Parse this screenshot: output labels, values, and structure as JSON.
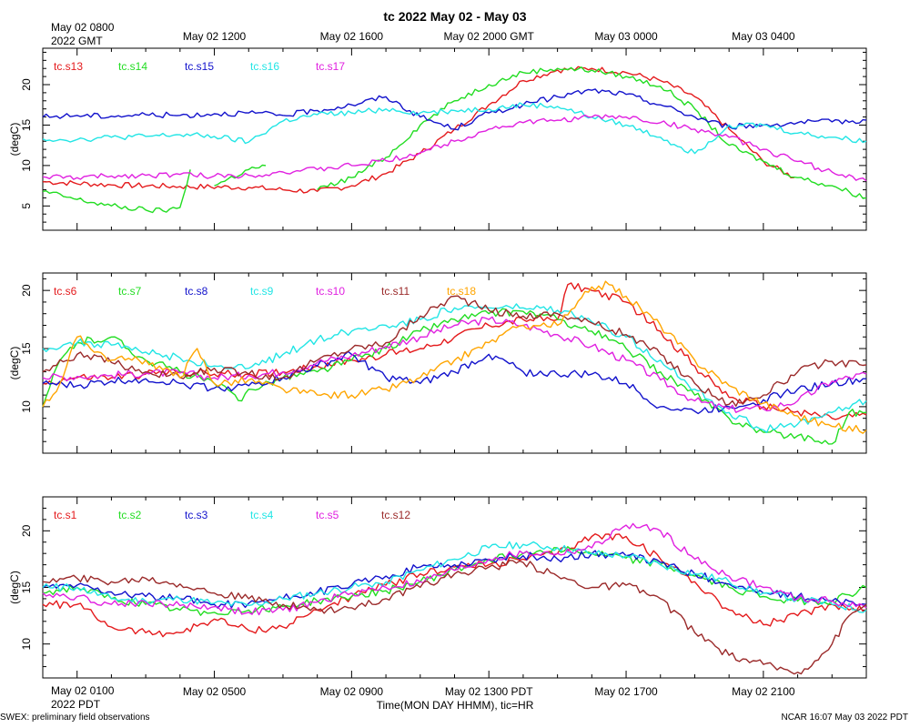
{
  "title": "tc 2022 May 02 - May 03",
  "colors": {
    "red": "#e41a1c",
    "green": "#22dd22",
    "blue": "#1212cc",
    "cyan": "#22e5e5",
    "magenta": "#e020e0",
    "brown": "#9b2a2a",
    "orange": "#ffa500"
  },
  "top_axis": {
    "first_label": [
      "May 02 0800",
      "2022 GMT"
    ],
    "labels": [
      "May 02 1200",
      "May 02 1600",
      "May 02 2000 GMT",
      "May 03 0000",
      "May 03 0400"
    ]
  },
  "bottom_axis": {
    "first_label": [
      "May 02 0100",
      "2022 PDT"
    ],
    "labels": [
      "May 02 0500",
      "May 02 0900",
      "May 02 1300 PDT",
      "May 02 1700",
      "May 02 2100"
    ],
    "xlabel": "Time(MON DAY HHMM), tic=HR"
  },
  "footer": {
    "left": "SWEX: preliminary field observations",
    "right": "NCAR 16:07 May 03 2022 PDT"
  },
  "chart_data": [
    {
      "type": "line",
      "ylabel": "(degC)",
      "ylim": [
        2,
        24.5
      ],
      "yticks": [
        5,
        10,
        15,
        20
      ],
      "xlim_hours_pdt": [
        0,
        24
      ],
      "series": [
        {
          "name": "tc.s13",
          "color": "red",
          "x": [
            0,
            2,
            4,
            6,
            7,
            8,
            9,
            10,
            11,
            12,
            13,
            14,
            15,
            16,
            17,
            18,
            19,
            20,
            21,
            21.9
          ],
          "y": [
            8,
            7.6,
            7.4,
            7.3,
            7,
            6.8,
            7.5,
            9,
            11.5,
            14.5,
            17.5,
            20.5,
            21.8,
            22,
            21.5,
            20.5,
            18.5,
            14.5,
            10.5,
            8.5
          ]
        },
        {
          "name": "tc.s14",
          "color": "green",
          "x": [
            0,
            1,
            2,
            3,
            3.5,
            4.0,
            4.3,
            4.6,
            5,
            6,
            6.5,
            7,
            8,
            9,
            10,
            11,
            12,
            13,
            14,
            15,
            16,
            17,
            18,
            19,
            20,
            21,
            22,
            23,
            24
          ],
          "y": [
            6.8,
            5.8,
            5,
            4.5,
            4.4,
            4.8,
            9.5,
            null,
            7.5,
            9.5,
            10,
            null,
            7,
            8.5,
            11,
            15,
            18,
            20,
            21.5,
            22,
            21.8,
            21,
            19.8,
            17,
            12.5,
            10.5,
            8.5,
            7.5,
            6
          ]
        },
        {
          "name": "tc.s15",
          "color": "blue",
          "x": [
            0,
            1,
            2,
            3,
            4,
            5,
            6,
            7,
            8,
            9,
            10,
            11,
            12,
            13,
            14,
            15,
            16,
            17,
            18,
            19,
            20,
            21,
            22,
            23,
            24
          ],
          "y": [
            16,
            16.2,
            16.1,
            16.3,
            16.2,
            16.4,
            16.5,
            16.2,
            16.8,
            17.5,
            18.5,
            16,
            14.5,
            16.5,
            17.5,
            18.5,
            19.3,
            18.8,
            17.5,
            16,
            14.8,
            15,
            15.3,
            15.4,
            15.6
          ]
        },
        {
          "name": "tc.s16",
          "color": "cyan",
          "x": [
            0,
            1,
            2,
            3,
            4,
            5,
            6,
            7,
            8,
            9,
            10,
            11,
            12,
            13,
            14,
            15,
            16,
            17,
            18,
            19,
            20,
            21,
            22,
            23,
            24
          ],
          "y": [
            13.3,
            13.2,
            13.5,
            13.6,
            13.8,
            13.6,
            12.9,
            15.5,
            16.3,
            16.5,
            17,
            16.5,
            16.8,
            17,
            17.5,
            17.3,
            16,
            15,
            13.5,
            11.5,
            15,
            15,
            14,
            13.5,
            13
          ]
        },
        {
          "name": "tc.s17",
          "color": "magenta",
          "x": [
            0,
            1,
            2,
            3,
            4,
            5,
            6,
            7,
            8,
            9,
            10,
            11,
            12,
            13,
            14,
            15,
            16,
            17,
            18,
            19,
            20,
            21,
            22,
            23,
            24
          ],
          "y": [
            8.6,
            8.5,
            8.7,
            8.8,
            8.9,
            8.7,
            8.8,
            9.2,
            9.5,
            10,
            10.6,
            11.6,
            13,
            14.5,
            15.3,
            15.6,
            16,
            16,
            15.3,
            14.5,
            13.5,
            12,
            10.5,
            9.2,
            8.1
          ]
        }
      ]
    },
    {
      "type": "line",
      "ylabel": "(degC)",
      "ylim": [
        6,
        21.5
      ],
      "yticks": [
        10,
        15,
        20
      ],
      "xlim_hours_pdt": [
        0,
        24
      ],
      "series": [
        {
          "name": "tc.s6",
          "color": "red",
          "x": [
            0,
            1,
            2,
            3,
            4,
            5,
            6,
            7,
            8,
            9,
            10,
            11,
            12,
            13,
            14,
            15,
            15.3,
            16,
            17,
            18,
            19,
            20,
            21,
            22,
            23,
            24
          ],
          "y": [
            12,
            12.5,
            12.5,
            12.8,
            13,
            12.8,
            12.8,
            13,
            13.5,
            14,
            14.5,
            15,
            16,
            17,
            17.5,
            17.5,
            20.5,
            20,
            19,
            16.5,
            13.5,
            10.8,
            10,
            9.6,
            9,
            9.3
          ]
        },
        {
          "name": "tc.s7",
          "color": "green",
          "x": [
            0,
            0.5,
            1,
            2,
            3,
            4,
            5,
            5.8,
            6,
            7,
            8,
            9,
            10,
            11,
            12,
            13,
            14,
            15,
            16,
            17,
            18,
            19,
            20,
            21,
            22,
            23,
            23.5,
            24
          ],
          "y": [
            10,
            14,
            15.5,
            16,
            14,
            13,
            12,
            10.5,
            11.5,
            12.5,
            13,
            14,
            15,
            16.5,
            17.5,
            18,
            18.2,
            17.5,
            16.5,
            15,
            13,
            11,
            9,
            7.8,
            7.5,
            6.8,
            9.5,
            9.5
          ]
        },
        {
          "name": "tc.s8",
          "color": "blue",
          "x": [
            0,
            1,
            2,
            3,
            4,
            5,
            6,
            7,
            8,
            9,
            10,
            11,
            12,
            13,
            14,
            15,
            16,
            17,
            18,
            19,
            20,
            21,
            22,
            23,
            24
          ],
          "y": [
            12,
            11.8,
            12.2,
            12.4,
            12,
            11.6,
            11.8,
            12.5,
            13.5,
            14.5,
            12.5,
            12,
            13,
            14.5,
            13,
            12.8,
            12.8,
            12,
            10,
            9.6,
            10,
            10.6,
            11.5,
            12,
            12.4
          ]
        },
        {
          "name": "tc.s9",
          "color": "cyan",
          "x": [
            0,
            1,
            2,
            3,
            4,
            5,
            6,
            7,
            8,
            9,
            10,
            11,
            12,
            13,
            14,
            15,
            16,
            17,
            18,
            19,
            20,
            21,
            22,
            23,
            24
          ],
          "y": [
            15,
            15.5,
            15.3,
            14.7,
            14.2,
            13.5,
            13.3,
            14.5,
            15.8,
            16.5,
            17,
            17.5,
            18.5,
            18.5,
            18.5,
            18.3,
            17.3,
            16,
            14,
            11.5,
            9.5,
            8,
            8.5,
            9.5,
            10.5
          ]
        },
        {
          "name": "tc.s10",
          "color": "magenta",
          "x": [
            0,
            1,
            2,
            3,
            4,
            5,
            6,
            7,
            8,
            9,
            10,
            11,
            12,
            13,
            14,
            15,
            16,
            17,
            18,
            19,
            20,
            21,
            22,
            23,
            24
          ],
          "y": [
            12.5,
            12.6,
            12.7,
            12.9,
            12.9,
            12.5,
            12.7,
            13,
            13.8,
            14.4,
            15.2,
            16,
            17,
            17.5,
            17,
            16.2,
            15.2,
            14,
            12.3,
            10.5,
            9.8,
            9.8,
            10.5,
            12.2,
            12.8
          ]
        },
        {
          "name": "tc.s11",
          "color": "brown",
          "x": [
            0,
            1,
            2,
            3,
            4,
            5,
            6,
            7,
            8,
            9,
            10,
            11,
            12,
            13,
            14,
            15,
            16,
            17,
            18,
            19,
            20,
            21,
            22,
            23,
            24
          ],
          "y": [
            13,
            14.5,
            13.8,
            13,
            12.5,
            13.3,
            12.8,
            12.5,
            14,
            15,
            15.5,
            17.8,
            19.5,
            18.3,
            17.8,
            18,
            17.2,
            16.2,
            14.5,
            12,
            10.2,
            11,
            13,
            13.9,
            13.6
          ]
        },
        {
          "name": "tc.s18",
          "color": "orange",
          "x": [
            0,
            0.5,
            1,
            2,
            3,
            4,
            4.5,
            5,
            6,
            7,
            8,
            9,
            10,
            11,
            12,
            13,
            14,
            15,
            15.5,
            16,
            16.5,
            17,
            18,
            19,
            20,
            21,
            22,
            23,
            24
          ],
          "y": [
            10,
            12,
            16,
            14,
            14,
            12.5,
            15,
            12,
            12.3,
            11.5,
            11,
            11,
            11.5,
            12.5,
            14,
            15.5,
            17,
            17,
            18.5,
            20.3,
            20.5,
            19.5,
            17,
            14,
            11.8,
            10.3,
            9.2,
            8.3,
            8
          ]
        }
      ]
    },
    {
      "type": "line",
      "ylabel": "(degC)",
      "ylim": [
        7,
        23
      ],
      "yticks": [
        10,
        15,
        20
      ],
      "xlim_hours_pdt": [
        0,
        24
      ],
      "series": [
        {
          "name": "tc.s1",
          "color": "red",
          "x": [
            0,
            1,
            2,
            3,
            4,
            5,
            6,
            7,
            8,
            9,
            10,
            11,
            12,
            13,
            14,
            15,
            16,
            17,
            18,
            19,
            20,
            21,
            22,
            23,
            24
          ],
          "y": [
            13.5,
            13.5,
            11.5,
            11,
            11,
            12.2,
            11.2,
            11.5,
            13,
            14.2,
            15.2,
            16.2,
            16.8,
            17,
            17.5,
            18,
            19.5,
            19.5,
            17.5,
            15.5,
            13,
            11.7,
            12.5,
            13.5,
            13
          ]
        },
        {
          "name": "tc.s2",
          "color": "green",
          "x": [
            0,
            1,
            2,
            3,
            4,
            5,
            6,
            7,
            8,
            9,
            10,
            11,
            12,
            13,
            14,
            15,
            16,
            17,
            18,
            19,
            20,
            21,
            22,
            23,
            24
          ],
          "y": [
            14.5,
            15,
            14,
            13.5,
            13,
            12.8,
            13,
            13.3,
            13.8,
            14.2,
            14.7,
            15.5,
            16.5,
            17.5,
            18,
            18.5,
            18,
            17.6,
            17,
            16,
            15,
            14.2,
            13.8,
            13.8,
            15
          ]
        },
        {
          "name": "tc.s3",
          "color": "blue",
          "x": [
            0,
            1,
            2,
            3,
            4,
            5,
            6,
            7,
            8,
            9,
            10,
            11,
            12,
            13,
            14,
            15,
            16,
            17,
            18,
            19,
            20,
            21,
            22,
            23,
            24
          ],
          "y": [
            15,
            15.2,
            14.6,
            14.2,
            14,
            13.5,
            13.6,
            14,
            14.6,
            15.2,
            16,
            16.8,
            17,
            17.4,
            17.8,
            17.5,
            18,
            17.8,
            17.2,
            16.2,
            15.3,
            14.5,
            14.2,
            13.8,
            13.5
          ]
        },
        {
          "name": "tc.s4",
          "color": "cyan",
          "x": [
            0,
            1,
            2,
            3,
            4,
            5,
            6,
            7,
            8,
            9,
            10,
            11,
            12,
            13,
            14,
            15,
            16,
            17,
            18,
            19,
            20,
            21,
            22,
            23,
            24
          ],
          "y": [
            15,
            15,
            14,
            13.8,
            14,
            13.6,
            13.4,
            14,
            14.5,
            15,
            15.5,
            16.5,
            17.5,
            18.5,
            18.8,
            18.5,
            18,
            17.8,
            17,
            16.2,
            15.5,
            14.5,
            14,
            13.5,
            13
          ]
        },
        {
          "name": "tc.s5",
          "color": "magenta",
          "x": [
            0,
            1,
            2,
            3,
            4,
            5,
            6,
            7,
            8,
            9,
            10,
            11,
            12,
            13,
            14,
            15,
            16,
            17,
            18,
            19,
            20,
            21,
            22,
            23,
            24
          ],
          "y": [
            14.5,
            14.2,
            13.5,
            13.7,
            13.4,
            13.3,
            12.8,
            13,
            13.7,
            14.5,
            15,
            15.5,
            16.5,
            17.5,
            18,
            18,
            18.5,
            20.5,
            20,
            17.5,
            16,
            15,
            14,
            13.8,
            13.2
          ]
        },
        {
          "name": "tc.s12",
          "color": "brown",
          "x": [
            0,
            1,
            2,
            3,
            4,
            5,
            6,
            7,
            8,
            9,
            10,
            11,
            12,
            13,
            14,
            15,
            16,
            17,
            18,
            19,
            20,
            21,
            22,
            22.5,
            23,
            23.5,
            24
          ],
          "y": [
            15.5,
            15.8,
            15.5,
            15.8,
            15.3,
            14.5,
            14,
            13.5,
            13,
            13.2,
            14,
            15,
            16.2,
            16.8,
            17.2,
            16,
            15,
            15.2,
            14,
            11,
            9,
            8.2,
            7.5,
            8.5,
            10,
            12.5,
            13.5
          ]
        }
      ]
    }
  ]
}
